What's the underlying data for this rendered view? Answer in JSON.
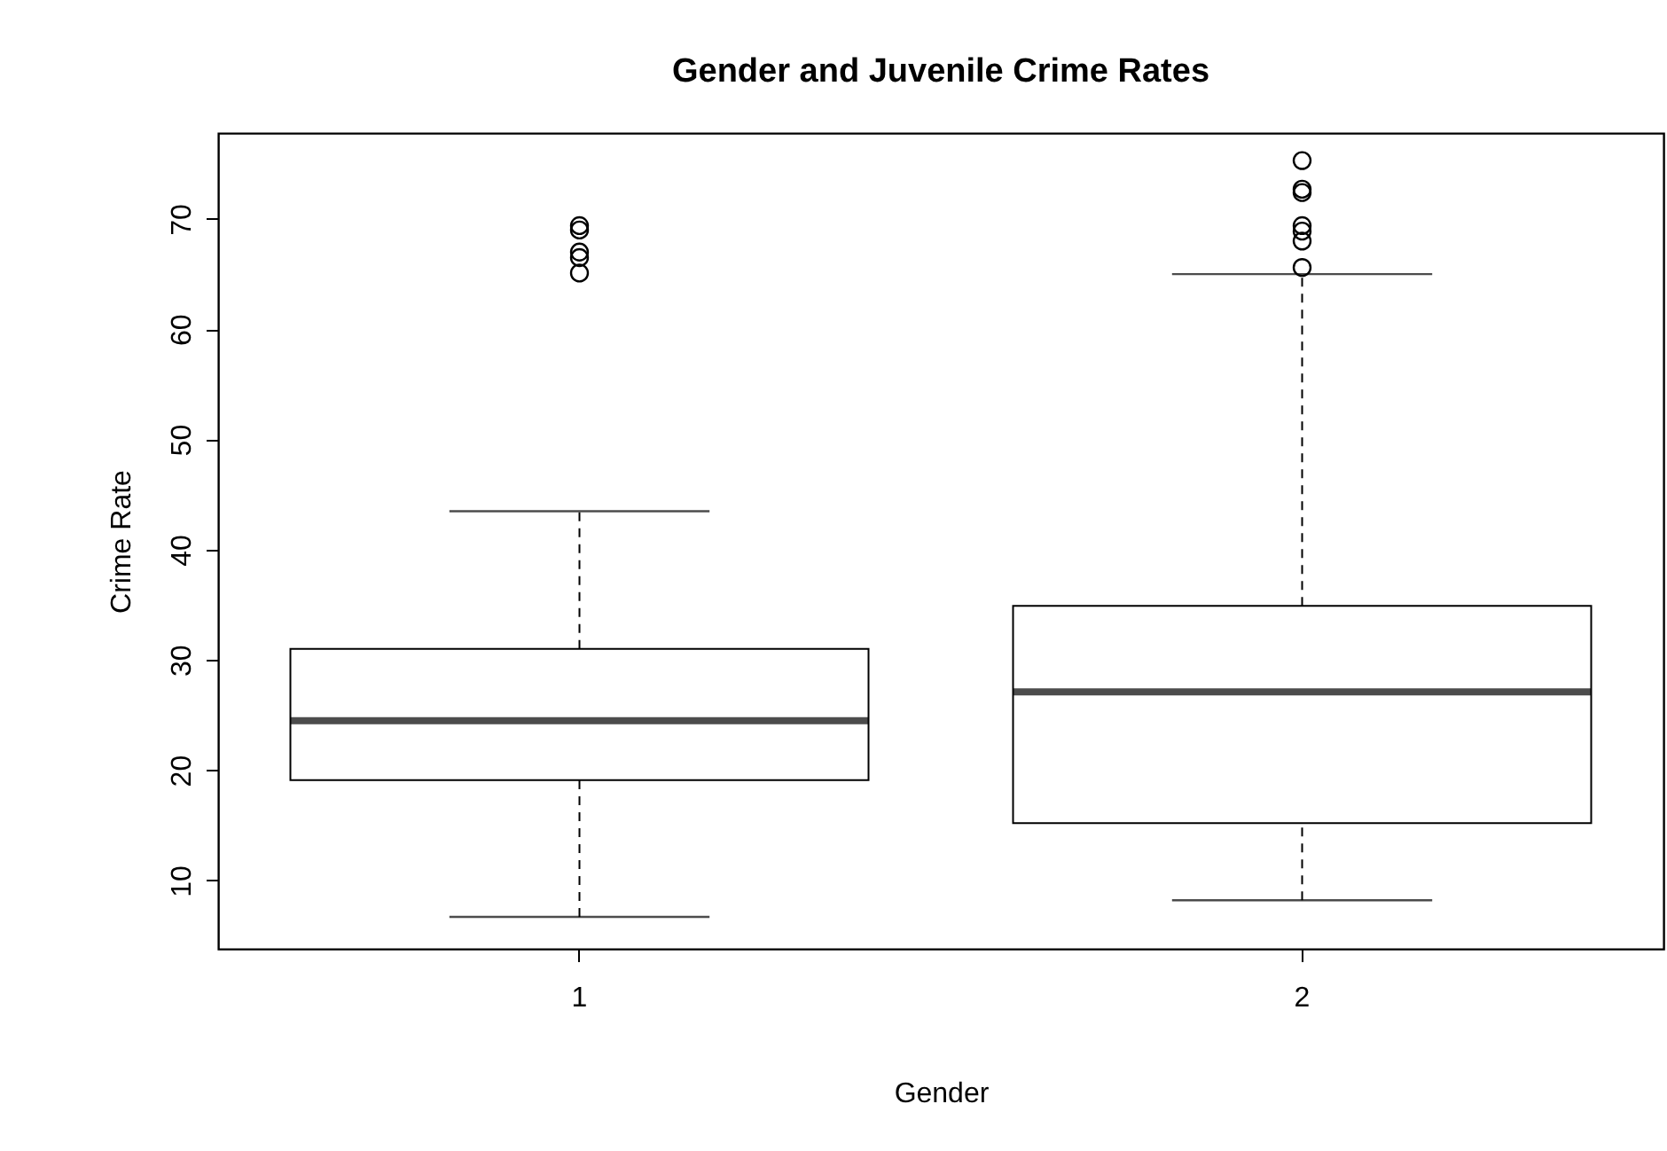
{
  "chart_data": {
    "type": "box",
    "title": "Gender and Juvenile Crime Rates",
    "xlabel": "Gender",
    "ylabel": "Crime Rate",
    "categories": [
      "1",
      "2"
    ],
    "boxes": [
      {
        "low": 6.7,
        "q1": 19.1,
        "median": 24.5,
        "q3": 31.0,
        "high": 43.5,
        "outliers": [
          65.1,
          66.5,
          67.0,
          69.0,
          69.4
        ]
      },
      {
        "low": 8.2,
        "q1": 15.2,
        "median": 27.1,
        "q3": 34.9,
        "high": 65.0,
        "outliers": [
          65.6,
          68.0,
          68.9,
          69.4,
          72.4,
          72.7,
          75.3
        ]
      }
    ],
    "ylim": [
      3.8,
      77.8
    ],
    "yticks": [
      10,
      20,
      30,
      40,
      50,
      60,
      70
    ]
  }
}
